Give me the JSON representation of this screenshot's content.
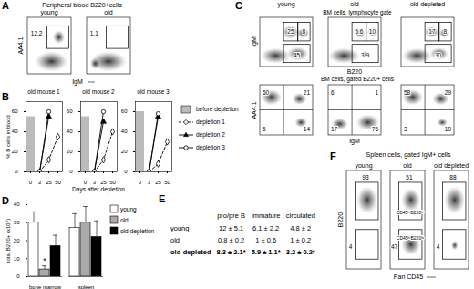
{
  "chart_data": [
    {
      "type": "line",
      "panel": "B",
      "title": "old mouse 1",
      "ylabel": "% B cells in blood",
      "categories": [
        "0",
        "3",
        "25",
        "50"
      ],
      "ylim": [
        0,
        70
      ],
      "yticks": [
        0,
        20,
        40,
        60
      ],
      "series": [
        {
          "name": "before depletion",
          "type": "bar",
          "color": "#bbbbbb",
          "values": [
            55,
            null,
            null,
            null
          ]
        },
        {
          "name": "depletion 1",
          "color": "#000000",
          "line_style": "dashed",
          "marker": "diamond-open",
          "values": [
            null,
            0,
            12,
            35
          ]
        },
        {
          "name": "depletion 2",
          "color": "#000000",
          "line_style": "solid",
          "marker": "triangle",
          "values": [
            null,
            0,
            55,
            null
          ]
        },
        {
          "name": "depletion 3",
          "color": "#000000",
          "line_style": "solid",
          "marker": "circle-open",
          "values": [
            null,
            0,
            60,
            null
          ]
        }
      ]
    },
    {
      "type": "line",
      "title": "old mouse 2",
      "xlabel": "Days after depletion",
      "categories": [
        "0",
        "3",
        "25",
        "50"
      ],
      "ylim": [
        0,
        70
      ],
      "yticks": [
        0,
        20,
        40,
        60
      ],
      "series": [
        {
          "name": "before depletion",
          "type": "bar",
          "color": "#bbbbbb",
          "values": [
            55,
            null,
            null,
            null
          ]
        },
        {
          "name": "depletion 1",
          "color": "#000000",
          "line_style": "dashed",
          "marker": "diamond-open",
          "values": [
            null,
            0,
            12,
            40
          ]
        },
        {
          "name": "depletion 2",
          "color": "#000000",
          "line_style": "solid",
          "marker": "triangle",
          "values": [
            null,
            0,
            50,
            null
          ]
        },
        {
          "name": "depletion 3",
          "color": "#000000",
          "line_style": "solid",
          "marker": "circle-open",
          "values": [
            null,
            0,
            60,
            null
          ]
        }
      ]
    },
    {
      "type": "line",
      "title": "old mouse 3",
      "legend": "right",
      "categories": [
        "0",
        "3",
        "25",
        "50"
      ],
      "ylim": [
        0,
        70
      ],
      "yticks": [
        0,
        20,
        40,
        60
      ],
      "series": [
        {
          "name": "before depletion",
          "type": "bar",
          "color": "#bbbbbb",
          "values": [
            60,
            null,
            null,
            null
          ]
        },
        {
          "name": "depletion 1",
          "color": "#000000",
          "line_style": "dashed",
          "marker": "diamond-open",
          "values": [
            null,
            0,
            8,
            30
          ]
        },
        {
          "name": "depletion 2",
          "color": "#000000",
          "line_style": "solid",
          "marker": "triangle",
          "values": [
            null,
            0,
            55,
            null
          ]
        },
        {
          "name": "depletion 3",
          "color": "#000000",
          "line_style": "solid",
          "marker": "circle-open",
          "values": [
            null,
            0,
            58,
            null
          ]
        }
      ]
    },
    {
      "type": "bar",
      "panel": "D",
      "ylabel": "total B220+ (x10⁶)",
      "categories": [
        "bone marrow",
        "spleen"
      ],
      "ylim": [
        0,
        40
      ],
      "yticks": [
        0,
        10,
        20,
        30,
        40
      ],
      "legend": "right",
      "series": [
        {
          "name": "young",
          "color": "#ffffff",
          "values": [
            30,
            27
          ],
          "errors": [
            6,
            8
          ]
        },
        {
          "name": "old",
          "color": "#aaaaaa",
          "values": [
            4,
            30
          ],
          "errors": [
            2,
            9
          ]
        },
        {
          "name": "old-depletion",
          "color": "#000000",
          "values": [
            17,
            22
          ],
          "errors": [
            6,
            9
          ]
        }
      ],
      "annotations": [
        {
          "text": "*",
          "category": "bone marrow",
          "series": "old"
        }
      ]
    }
  ],
  "panels": [
    {
      "label": "A",
      "title": "Peripheral blood B220+cells",
      "xlabel": "IgM",
      "ylabel": "AA4.1",
      "plots": [
        {
          "name": "young",
          "gates": [
            "12.2"
          ]
        },
        {
          "name": "old",
          "gates": [
            "1.1"
          ]
        }
      ]
    },
    {
      "label": "C",
      "rows": [
        {
          "title": "BM cells, lymphocyte gate",
          "xlabel": "B220",
          "ylabel": "IgM",
          "plots": [
            {
              "name": "young",
              "gates": [
                "25",
                "8",
                "45"
              ]
            },
            {
              "name": "old",
              "gates": [
                "5.6",
                "10",
                "3.9"
              ]
            },
            {
              "name": "old depleted",
              "gates": [
                "17",
                "8",
                "30"
              ]
            }
          ]
        },
        {
          "title": "BM cells, gated B220+ cells",
          "xlabel": "IgM",
          "ylabel": "AA4.1",
          "plots": [
            {
              "quadrants": [
                "60",
                "21",
                "5",
                "14"
              ]
            },
            {
              "quadrants": [
                "6",
                "1",
                "17",
                "76"
              ]
            },
            {
              "quadrants": [
                "58",
                "29",
                "3",
                "10"
              ]
            }
          ]
        }
      ]
    },
    {
      "label": "E",
      "columns": [
        "pro/pre B",
        "immature",
        "circulated"
      ],
      "rows": [
        {
          "name": "young",
          "cells": [
            "12 ± 5.1",
            "6.1 ± 2.2",
            "4.8 ± 2"
          ]
        },
        {
          "name": "old",
          "cells": [
            "0.8 ± 0.2",
            "1 ± 0.6",
            "1 ± 0.2"
          ]
        },
        {
          "name": "old-depleted",
          "cells": [
            "8.3 ± 2.1*",
            "5.9 ± 1.1*",
            "3.2 ± 0.2*"
          ]
        }
      ]
    },
    {
      "label": "F",
      "title": "Spleen cells, gated IgM+ cells",
      "xlabel": "Pan CD45",
      "ylabel": "B220",
      "plots": [
        {
          "name": "young",
          "gates": [
            "93",
            "4"
          ]
        },
        {
          "name": "old",
          "gates": [
            "51",
            "47"
          ],
          "annotations": [
            "CD45ʰⁱB220ʰⁱ",
            "CD45ʰⁱB220ˡᵒ"
          ]
        },
        {
          "name": "old depleted",
          "gates": [
            "88",
            "4"
          ]
        }
      ]
    }
  ]
}
